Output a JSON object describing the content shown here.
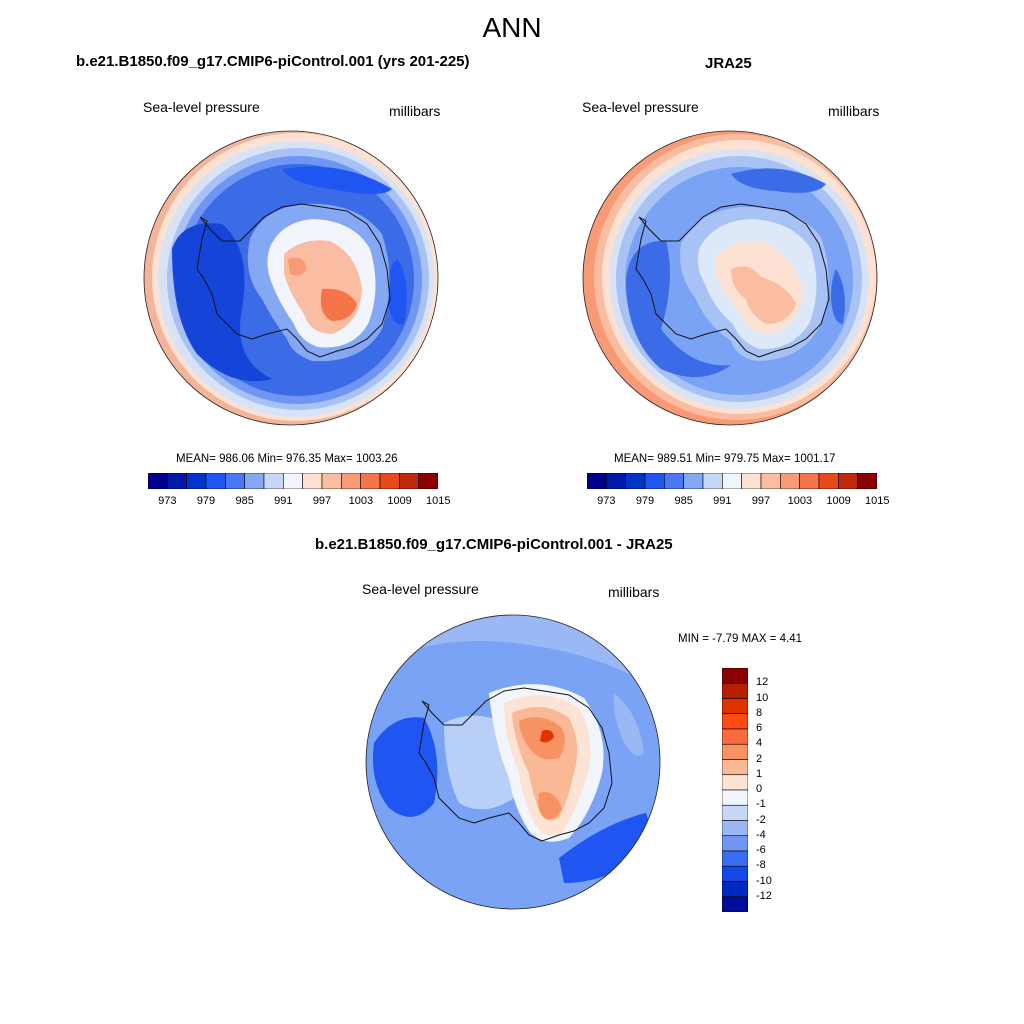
{
  "figure": {
    "title": "ANN",
    "panels": [
      {
        "id": "model",
        "title": "b.e21.B1850.f09_g17.CMIP6-piControl.001 (yrs 201-225)",
        "left_label": "Sea-level pressure",
        "right_label": "millibars",
        "stats": "MEAN= 986.06  Min= 976.35  Max= 1003.26",
        "base_color": "#3c6be8"
      },
      {
        "id": "obs",
        "title": "JRA25",
        "left_label": "Sea-level pressure",
        "right_label": "millibars",
        "stats": "MEAN= 989.51  Min= 979.75  Max= 1001.17",
        "base_color": "#7aa2f5"
      },
      {
        "id": "diff",
        "title": "b.e21.B1850.f09_g17.CMIP6-piControl.001 - JRA25",
        "left_label": "Sea-level pressure",
        "right_label": "millibars",
        "stats": "MIN =  -7.79 MAX =   4.41",
        "base_color": "#b8d0f7"
      }
    ],
    "abs_colorbar": {
      "colors": [
        "#00008b",
        "#0019a6",
        "#0033cc",
        "#1f55f0",
        "#4a78f5",
        "#85a8f5",
        "#c6d8f5",
        "#f2f6fc",
        "#fde1d2",
        "#fbbda1",
        "#f99a76",
        "#f6744a",
        "#e84a1c",
        "#bf2a0c",
        "#8b0000"
      ],
      "ticks": [
        "973",
        "979",
        "985",
        "991",
        "997",
        "1003",
        "1009",
        "1015"
      ]
    },
    "diff_colorbar": {
      "colors": [
        "#8b0000",
        "#b81e00",
        "#e03300",
        "#ff4a14",
        "#fb6b3d",
        "#f89262",
        "#f9b896",
        "#fde3d3",
        "#f2f6fc",
        "#c6d8f5",
        "#9ab9f4",
        "#6e96f2",
        "#3a6df0",
        "#1348e8",
        "#0029c0",
        "#000c99"
      ],
      "ticks": [
        "12",
        "10",
        "8",
        "6",
        "4",
        "2",
        "1",
        "0",
        "-1",
        "-2",
        "-4",
        "-6",
        "-8",
        "-10",
        "-12"
      ]
    }
  },
  "chart_data": [
    {
      "type": "heatmap",
      "projection": "south polar stereographic",
      "title": "b.e21.B1850.f09_g17.CMIP6-piControl.001 (yrs 201-225)",
      "variable": "Sea-level pressure",
      "units": "millibars",
      "mean": 986.06,
      "min": 976.35,
      "max": 1003.26,
      "levels": [
        973,
        976,
        979,
        982,
        985,
        988,
        991,
        994,
        997,
        1000,
        1003,
        1006,
        1009,
        1012,
        1015
      ]
    },
    {
      "type": "heatmap",
      "projection": "south polar stereographic",
      "title": "JRA25",
      "variable": "Sea-level pressure",
      "units": "millibars",
      "mean": 989.51,
      "min": 979.75,
      "max": 1001.17,
      "levels": [
        973,
        976,
        979,
        982,
        985,
        988,
        991,
        994,
        997,
        1000,
        1003,
        1006,
        1009,
        1012,
        1015
      ]
    },
    {
      "type": "heatmap",
      "projection": "south polar stereographic",
      "title": "b.e21.B1850.f09_g17.CMIP6-piControl.001 - JRA25",
      "variable": "Sea-level pressure",
      "units": "millibars",
      "min": -7.79,
      "max": 4.41,
      "levels": [
        -12,
        -10,
        -8,
        -6,
        -4,
        -2,
        -1,
        0,
        1,
        2,
        4,
        6,
        8,
        10,
        12
      ]
    }
  ]
}
